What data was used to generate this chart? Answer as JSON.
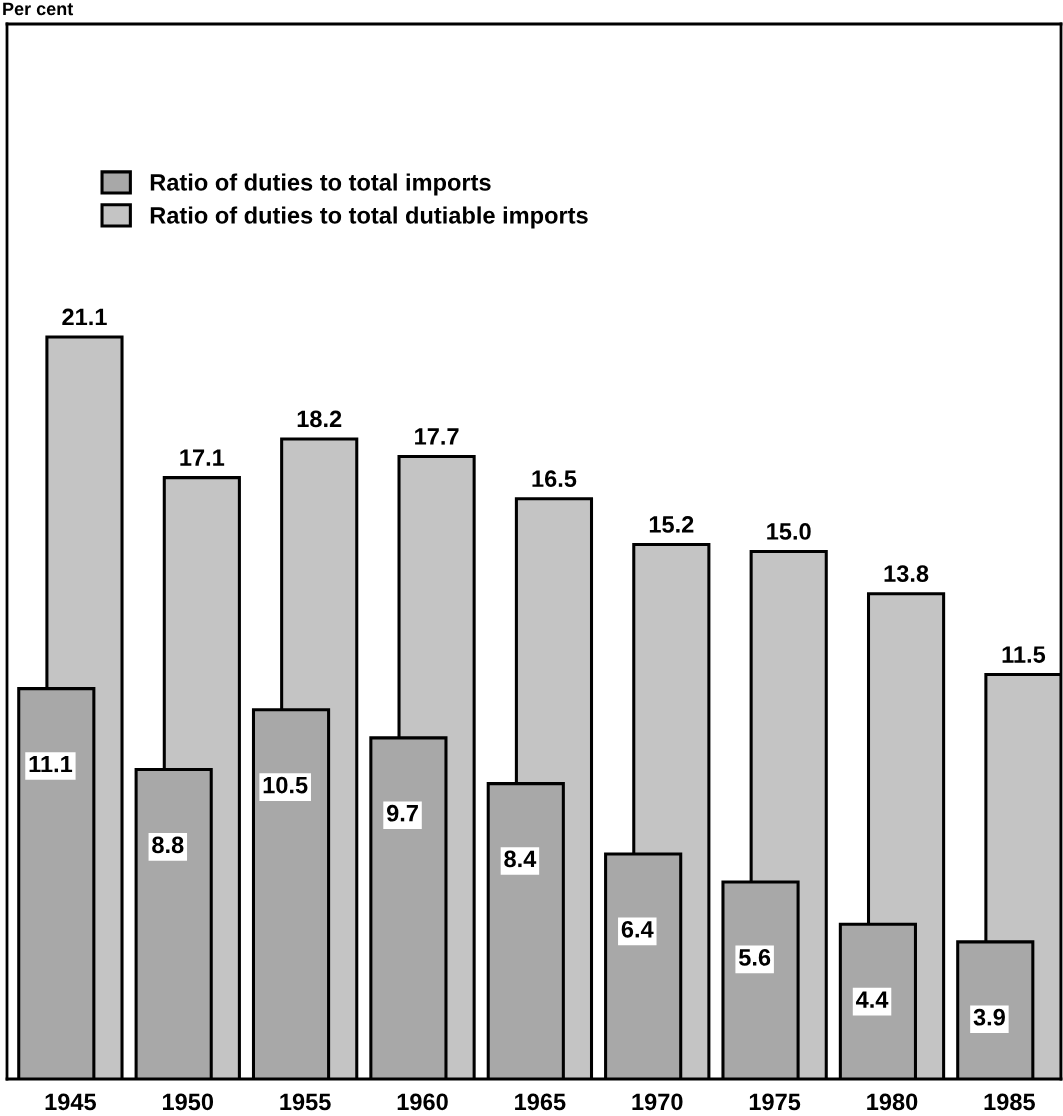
{
  "chart_data": {
    "type": "bar",
    "ylabel": "Per cent",
    "categories": [
      "1945",
      "1950",
      "1955",
      "1960",
      "1965",
      "1970",
      "1975",
      "1980",
      "1985"
    ],
    "series": [
      {
        "name": "Ratio of duties to total imports",
        "color": "#a8a8a8",
        "values": [
          11.1,
          8.8,
          10.5,
          9.7,
          8.4,
          6.4,
          5.6,
          4.4,
          3.9
        ],
        "value_labels": [
          "11.1",
          "8.8",
          "10.5",
          "9.7",
          "8.4",
          "6.4",
          "5.6",
          "4.4",
          "3.9"
        ]
      },
      {
        "name": "Ratio of duties to total dutiable imports",
        "color": "#c4c4c4",
        "values": [
          21.1,
          17.1,
          18.2,
          17.7,
          16.5,
          15.2,
          15.0,
          13.8,
          11.5
        ],
        "value_labels": [
          "21.1",
          "17.1",
          "18.2",
          "17.7",
          "16.5",
          "15.2",
          "15.0",
          "13.8",
          "11.5"
        ]
      }
    ],
    "ylim": [
      0,
      30
    ],
    "legend": "top left",
    "grid": false,
    "tick_labels": "x"
  }
}
